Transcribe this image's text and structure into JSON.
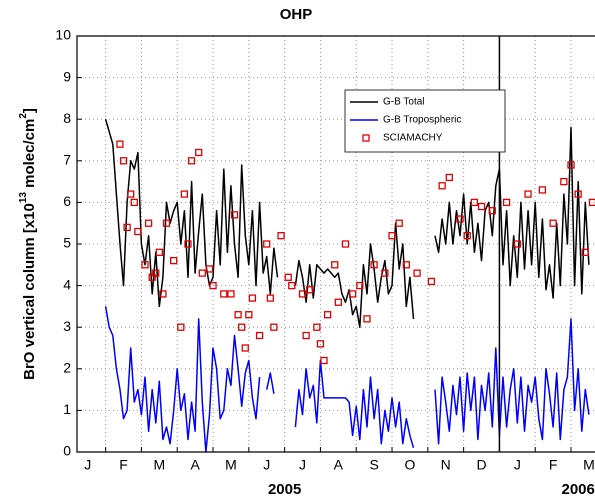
{
  "chart_data": {
    "type": "line",
    "title": "OHP",
    "y_label": [
      "BrO vertical column  [x10",
      "13",
      " molec/cm",
      "2",
      "]"
    ],
    "x_year_labels": [
      {
        "value": 6,
        "label": "2005"
      },
      {
        "value": 14.2,
        "label": "2006"
      }
    ],
    "xlim": [
      0.2,
      14.67
    ],
    "ylim": [
      0,
      10
    ],
    "yticks": [
      0,
      1,
      2,
      3,
      4,
      5,
      6,
      7,
      8,
      9,
      10
    ],
    "xticks": [
      1,
      2,
      3,
      4,
      5,
      6,
      7,
      8,
      9,
      10,
      11,
      12,
      13,
      14
    ],
    "xtick_labels": [
      {
        "value": 0.5,
        "label": "J"
      },
      {
        "value": 1.5,
        "label": "F"
      },
      {
        "value": 2.5,
        "label": "M"
      },
      {
        "value": 3.5,
        "label": "A"
      },
      {
        "value": 4.5,
        "label": "M"
      },
      {
        "value": 5.5,
        "label": "J"
      },
      {
        "value": 6.5,
        "label": "J"
      },
      {
        "value": 7.5,
        "label": "A"
      },
      {
        "value": 8.5,
        "label": "S"
      },
      {
        "value": 9.5,
        "label": "O"
      },
      {
        "value": 10.5,
        "label": "N"
      },
      {
        "value": 11.5,
        "label": "D"
      },
      {
        "value": 12.5,
        "label": "J"
      },
      {
        "value": 13.5,
        "label": "F"
      },
      {
        "value": 14.5,
        "label": "M"
      }
    ],
    "vlines": [
      12
    ],
    "grid": true,
    "x": [
      1,
      1.1,
      1.2,
      1.3,
      1.4,
      1.5,
      1.6,
      1.7,
      1.8,
      1.9,
      2,
      2.1,
      2.2,
      2.3,
      2.4,
      2.5,
      2.6,
      2.7,
      2.8,
      2.9,
      3,
      3.1,
      3.2,
      3.3,
      3.4,
      3.5,
      3.6,
      3.7,
      3.8,
      3.9,
      4,
      4.1,
      4.2,
      4.3,
      4.4,
      4.5,
      4.6,
      4.7,
      4.8,
      4.9,
      5,
      5.1,
      5.2,
      5.3,
      5.4,
      5.5,
      5.6,
      5.7,
      5.8,
      5.9,
      6,
      6.1,
      6.2,
      6.3,
      6.4,
      6.5,
      6.6,
      6.7,
      6.8,
      6.9,
      7,
      7.1,
      7.2,
      7.3,
      7.4,
      7.5,
      7.6,
      7.7,
      7.8,
      7.9,
      8,
      8.1,
      8.2,
      8.3,
      8.4,
      8.5,
      8.6,
      8.7,
      8.8,
      8.9,
      9,
      9.1,
      9.2,
      9.3,
      9.4,
      9.5,
      9.6,
      9.7,
      9.8,
      9.9,
      10,
      10.1,
      10.2,
      10.3,
      10.4,
      10.5,
      10.6,
      10.7,
      10.8,
      10.9,
      11,
      11.1,
      11.2,
      11.3,
      11.4,
      11.5,
      11.6,
      11.7,
      11.8,
      11.9,
      12,
      12.1,
      12.2,
      12.3,
      12.4,
      12.5,
      12.6,
      12.7,
      12.8,
      12.9,
      13,
      13.1,
      13.2,
      13.3,
      13.4,
      13.5,
      13.6,
      13.7,
      13.8,
      13.9,
      14,
      14.1,
      14.2,
      14.3,
      14.4,
      14.5
    ],
    "series": [
      {
        "name": "G-B Total",
        "color": "#000000",
        "values": [
          8.0,
          7.7,
          7.4,
          6.2,
          5.0,
          4.0,
          6.0,
          7.0,
          6.8,
          7.2,
          5.0,
          4.5,
          5.2,
          3.8,
          4.8,
          3.5,
          4.2,
          6.0,
          5.5,
          5.8,
          6.0,
          5.0,
          5.8,
          4.2,
          6.5,
          4.3,
          5.3,
          6.2,
          4.5,
          4.0,
          4.2,
          5.8,
          4.5,
          6.8,
          4.8,
          6.4,
          5.0,
          4.2,
          6.9,
          5.2,
          4.5,
          5.8,
          4.0,
          6.0,
          4.3,
          4.7,
          3.8,
          4.9,
          4.2,
          null,
          null,
          null,
          null,
          4.0,
          4.6,
          4.2,
          3.6,
          4.5,
          3.7,
          4.5,
          4.4,
          4.3,
          4.4,
          4.3,
          4.2,
          4.3,
          3.8,
          3.6,
          3.9,
          3.3,
          3.5,
          3.0,
          4.5,
          3.8,
          5.0,
          4.4,
          3.6,
          4.2,
          4.6,
          3.8,
          4.0,
          5.5,
          4.4,
          5.0,
          3.5,
          4.2,
          3.2,
          null,
          null,
          null,
          null,
          null,
          5.2,
          4.8,
          5.6,
          5.0,
          6.0,
          5.0,
          5.8,
          5.2,
          6.2,
          5.0,
          6.0,
          4.8,
          5.5,
          4.6,
          5.8,
          6.0,
          5.2,
          6.4,
          6.8,
          4.5,
          5.8,
          4.0,
          5.2,
          4.2,
          6.0,
          4.4,
          5.8,
          4.5,
          6.0,
          4.2,
          5.6,
          3.9,
          4.5,
          3.7,
          5.5,
          4.0,
          6.2,
          5.0,
          7.8,
          4.0,
          6.5,
          3.8,
          6.0,
          4.5
        ]
      },
      {
        "name": "G-B Tropospheric",
        "color": "#0000ff",
        "values": [
          3.5,
          3.0,
          2.8,
          2.0,
          1.5,
          0.8,
          1.0,
          2.5,
          1.2,
          1.5,
          0.9,
          1.8,
          0.5,
          1.5,
          0.7,
          1.7,
          0.3,
          0.6,
          0.2,
          1.0,
          2.0,
          1.0,
          1.4,
          0.3,
          1.2,
          0.5,
          3.2,
          1.2,
          0.0,
          0.9,
          2.5,
          2.0,
          0.8,
          1.0,
          2.0,
          1.6,
          2.8,
          2.0,
          1.1,
          1.9,
          2.2,
          1.3,
          0.8,
          1.8,
          null,
          1.5,
          1.9,
          1.4,
          null,
          null,
          null,
          null,
          null,
          0.6,
          1.5,
          0.9,
          2.0,
          1.3,
          1.6,
          0.7,
          2.2,
          1.3,
          1.3,
          1.3,
          1.3,
          1.3,
          1.3,
          1.3,
          1.2,
          0.4,
          1.1,
          0.3,
          1.5,
          0.6,
          1.8,
          0.8,
          1.5,
          0.2,
          1.0,
          0.5,
          1.3,
          0.6,
          1.2,
          0.2,
          0.8,
          0.4,
          0.1,
          null,
          null,
          null,
          null,
          null,
          1.5,
          0.2,
          1.8,
          1.2,
          0.5,
          1.6,
          0.9,
          1.8,
          0.5,
          1.9,
          1.0,
          1.8,
          0.3,
          1.6,
          1.0,
          1.9,
          0.6,
          2.5,
          0.4,
          1.8,
          0.6,
          1.5,
          2.0,
          0.7,
          1.8,
          0.5,
          1.6,
          1.2,
          1.8,
          0.8,
          0.3,
          2.0,
          1.4,
          0.6,
          1.9,
          0.3,
          1.5,
          1.8,
          3.2,
          1.0,
          2.0,
          0.5,
          1.5,
          0.9
        ]
      },
      {
        "name": "SCIAMACHY",
        "color": "#e00000",
        "marker": "square",
        "x": [
          1.4,
          1.5,
          1.6,
          1.7,
          1.8,
          1.9,
          2.1,
          2.2,
          2.3,
          2.4,
          2.5,
          2.6,
          2.7,
          2.9,
          3.1,
          3.2,
          3.3,
          3.4,
          3.6,
          3.7,
          3.9,
          4.0,
          4.3,
          4.5,
          4.6,
          4.7,
          4.8,
          4.9,
          5.0,
          5.1,
          5.3,
          5.5,
          5.6,
          5.7,
          5.9,
          6.1,
          6.2,
          6.5,
          6.6,
          6.7,
          6.9,
          7.0,
          7.1,
          7.2,
          7.4,
          7.5,
          7.7,
          7.9,
          8.1,
          8.3,
          8.5,
          8.8,
          9.0,
          9.2,
          9.4,
          9.7,
          10.1,
          10.4,
          10.6,
          10.9,
          11.1,
          11.3,
          11.5,
          11.8,
          12.2,
          12.5,
          12.8,
          13.2,
          13.5,
          13.8,
          14.0,
          14.2,
          14.4,
          14.6
        ],
        "values": [
          7.4,
          7.0,
          5.4,
          6.2,
          6.0,
          5.3,
          4.5,
          5.5,
          4.2,
          4.3,
          4.8,
          3.8,
          5.5,
          4.6,
          3.0,
          6.2,
          5.0,
          7.0,
          7.2,
          4.3,
          4.4,
          4.0,
          3.8,
          3.8,
          5.7,
          3.3,
          3.0,
          2.5,
          3.3,
          3.7,
          2.8,
          5.0,
          3.7,
          3.0,
          5.2,
          4.2,
          4.0,
          3.8,
          2.8,
          3.9,
          3.0,
          2.6,
          2.2,
          3.3,
          4.5,
          3.6,
          5.0,
          3.8,
          4.0,
          3.2,
          4.5,
          4.3,
          5.2,
          5.5,
          4.5,
          4.3,
          4.1,
          6.4,
          6.6,
          5.6,
          5.2,
          6.0,
          5.9,
          5.8,
          6.0,
          5.0,
          6.2,
          6.3,
          5.5,
          6.5,
          6.9,
          6.2,
          4.8,
          6.0
        ]
      }
    ]
  }
}
